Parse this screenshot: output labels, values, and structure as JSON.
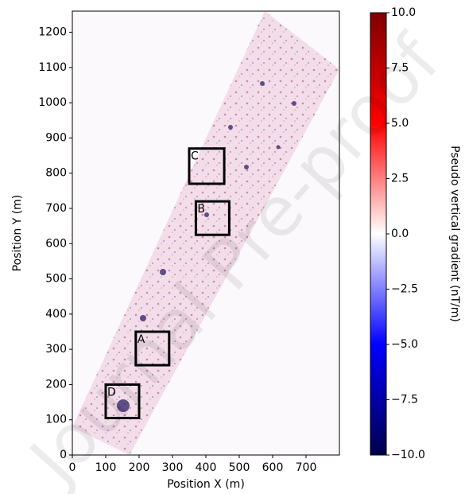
{
  "chart_data": {
    "type": "map",
    "xlabel": "Position X (m)",
    "ylabel": "Position Y (m)",
    "xlim": [
      0,
      800
    ],
    "ylim": [
      0,
      1260
    ],
    "xticks": [
      0,
      100,
      200,
      300,
      400,
      500,
      600,
      700
    ],
    "yticks": [
      0,
      100,
      200,
      300,
      400,
      500,
      600,
      700,
      800,
      900,
      1000,
      1100,
      1200
    ],
    "boxes": [
      {
        "label": "C",
        "x": [
          350,
          455
        ],
        "y": [
          770,
          870
        ]
      },
      {
        "label": "B",
        "x": [
          370,
          470
        ],
        "y": [
          625,
          720
        ]
      },
      {
        "label": "A",
        "x": [
          190,
          290
        ],
        "y": [
          255,
          350
        ]
      },
      {
        "label": "D",
        "x": [
          100,
          200
        ],
        "y": [
          105,
          200
        ]
      }
    ],
    "colorbar": {
      "label": "Pseudo vertical gradient (nT/m)",
      "lim": [
        -10,
        10
      ],
      "colormap": [
        "#00004c",
        "#0000ff",
        "#ffffff",
        "#ff0000",
        "#7f0000"
      ],
      "ticks": [
        {
          "value": 10,
          "label": "10.0"
        },
        {
          "value": 7.5,
          "label": "7.5"
        },
        {
          "value": 5,
          "label": "5.0"
        },
        {
          "value": 2.5,
          "label": "2.5"
        },
        {
          "value": 0,
          "label": "0.0"
        },
        {
          "value": -2.5,
          "label": "−2.5"
        },
        {
          "value": -5,
          "label": "−5.0"
        },
        {
          "value": -7.5,
          "label": "−7.5"
        },
        {
          "value": -10,
          "label": "−10.0"
        }
      ]
    },
    "watermark": "Journal Pre-proof"
  }
}
